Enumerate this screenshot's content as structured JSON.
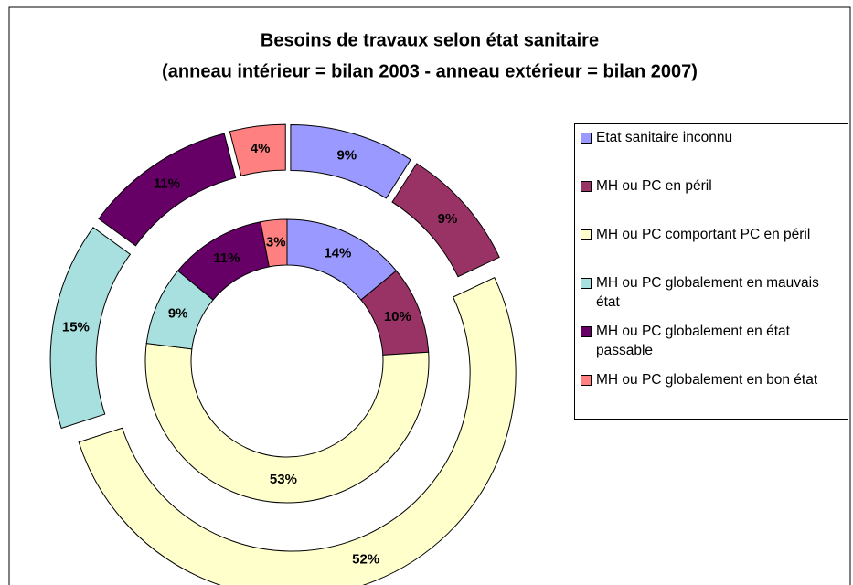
{
  "chart_data": {
    "type": "doughnut",
    "title": "Besoins de travaux selon état sanitaire",
    "subtitle": "(anneau intérieur = bilan 2003 - anneau extérieur = bilan 2007)",
    "categories": [
      "Etat sanitaire inconnu",
      "MH ou PC en péril",
      "MH ou PC comportant PC en péril",
      "MH ou PC globalement en mauvais état",
      "MH ou PC globalement en état passable",
      "MH ou PC globalement en bon état"
    ],
    "colors": [
      "#9999ff",
      "#993366",
      "#ffffcc",
      "#a8e0e0",
      "#660066",
      "#ff8080"
    ],
    "rings": [
      {
        "values": [
          14,
          10,
          53,
          9,
          11,
          3
        ],
        "value_labels": [
          "14%",
          "10%",
          "53%",
          "9%",
          "11%",
          "3%"
        ]
      },
      {
        "values": [
          9,
          9,
          52,
          15,
          11,
          4
        ],
        "value_labels": [
          "9%",
          "9%",
          "52%",
          "15%",
          "11%",
          "4%"
        ]
      }
    ]
  }
}
